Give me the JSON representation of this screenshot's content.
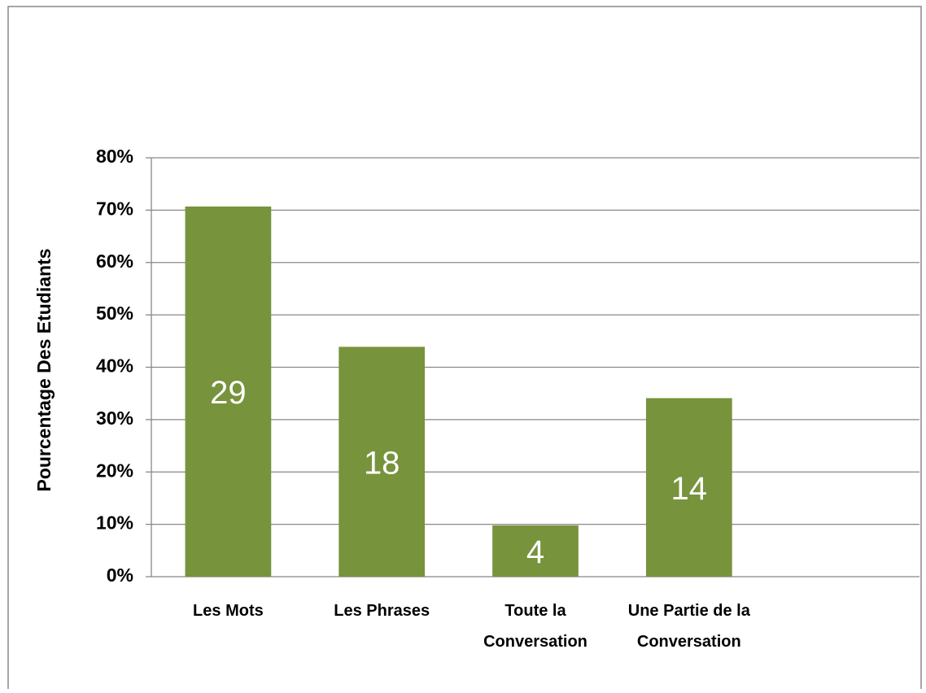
{
  "chart_data": {
    "type": "bar",
    "y_label": "Pourcentage Des Etudiants",
    "categories": [
      "Les Mots",
      "Les Phrases",
      "Toute la Conversation",
      "Une Partie de la Conversation",
      null
    ],
    "values": [
      70.7,
      43.9,
      9.8,
      34.1,
      null
    ],
    "counts": [
      29,
      18,
      4,
      14,
      null
    ],
    "color": "#77933c",
    "ylim": [
      0,
      80
    ],
    "yticks": [
      {
        "value": 0,
        "label": "0%"
      },
      {
        "value": 10,
        "label": "10%"
      },
      {
        "value": 20,
        "label": "20%"
      },
      {
        "value": 30,
        "label": "30%"
      },
      {
        "value": 40,
        "label": "40%"
      },
      {
        "value": 50,
        "label": "50%"
      },
      {
        "value": 60,
        "label": "60%"
      },
      {
        "value": 70,
        "label": "70%"
      },
      {
        "value": 80,
        "label": "80%"
      }
    ],
    "grid": true
  }
}
